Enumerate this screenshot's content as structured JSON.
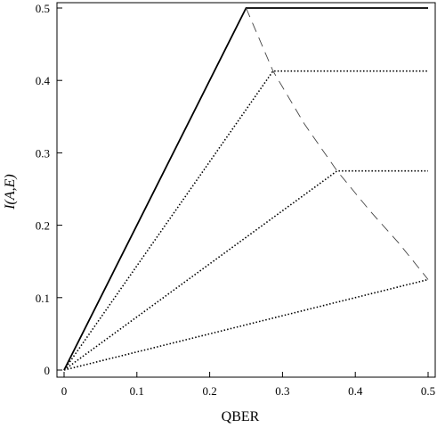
{
  "chart_data": {
    "type": "line",
    "xlabel": "QBER",
    "ylabel": "I(A,E)",
    "xlim": [
      0,
      0.5
    ],
    "ylim": [
      0,
      0.5
    ],
    "xticks": [
      "0",
      "0.1",
      "0.2",
      "0.3",
      "0.4",
      "0.5"
    ],
    "yticks": [
      "0",
      "0.1",
      "0.2",
      "0.3",
      "0.4",
      "0.5"
    ],
    "grid": false,
    "series": [
      {
        "style": "solid",
        "points": [
          [
            0,
            0
          ],
          [
            0.25,
            0.5
          ],
          [
            0.5,
            0.5
          ]
        ]
      },
      {
        "style": "dotted",
        "points": [
          [
            0,
            0
          ],
          [
            0.287,
            0.413
          ],
          [
            0.5,
            0.413
          ]
        ]
      },
      {
        "style": "dotted",
        "points": [
          [
            0,
            0
          ],
          [
            0.375,
            0.275
          ],
          [
            0.5,
            0.275
          ]
        ]
      },
      {
        "style": "dotted",
        "points": [
          [
            0,
            0
          ],
          [
            0.5,
            0.125
          ]
        ]
      },
      {
        "style": "dashed",
        "points": [
          [
            0.25,
            0.5
          ],
          [
            0.287,
            0.413
          ],
          [
            0.33,
            0.34
          ],
          [
            0.375,
            0.275
          ],
          [
            0.42,
            0.22
          ],
          [
            0.46,
            0.175
          ],
          [
            0.5,
            0.125
          ]
        ]
      }
    ]
  }
}
